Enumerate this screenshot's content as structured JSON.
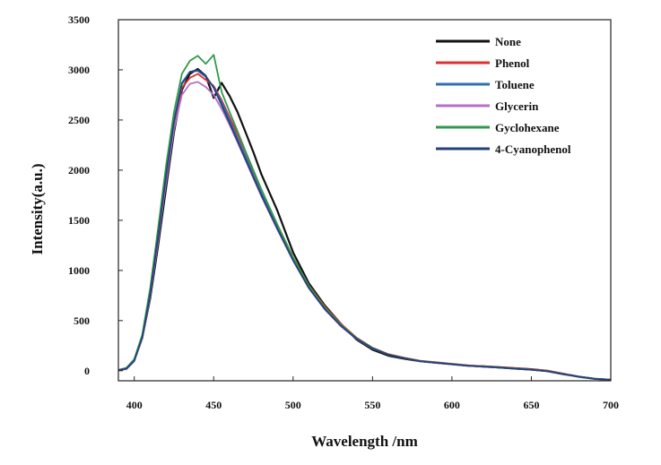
{
  "chart_data": {
    "type": "line",
    "xlabel": "Wavelength /nm",
    "ylabel": "Intensity(a.u.)",
    "xlim": [
      390,
      700
    ],
    "ylim": [
      -100,
      3500
    ],
    "xticks": [
      400,
      450,
      500,
      550,
      600,
      650,
      700
    ],
    "yticks": [
      0,
      500,
      1000,
      1500,
      2000,
      2500,
      3000,
      3500
    ],
    "grid": false,
    "legend_position": "top-right",
    "x": [
      390,
      395,
      400,
      405,
      410,
      415,
      420,
      425,
      430,
      435,
      440,
      445,
      450,
      455,
      460,
      465,
      470,
      475,
      480,
      490,
      500,
      510,
      520,
      530,
      540,
      550,
      560,
      570,
      580,
      590,
      600,
      610,
      620,
      630,
      640,
      650,
      660,
      670,
      680,
      690,
      700
    ],
    "series": [
      {
        "name": "None",
        "color": "#111111",
        "values": [
          5,
          25,
          110,
          330,
          720,
          1250,
          1820,
          2380,
          2800,
          2960,
          3010,
          2940,
          2720,
          2870,
          2740,
          2580,
          2380,
          2180,
          1960,
          1600,
          1180,
          870,
          650,
          470,
          310,
          210,
          150,
          120,
          95,
          80,
          65,
          50,
          45,
          35,
          25,
          15,
          0,
          -30,
          -60,
          -80,
          -90
        ]
      },
      {
        "name": "Phenol",
        "color": "#e03030",
        "values": [
          5,
          20,
          100,
          330,
          760,
          1330,
          1920,
          2460,
          2820,
          2920,
          2960,
          2900,
          2840,
          2700,
          2530,
          2360,
          2180,
          1990,
          1800,
          1460,
          1130,
          850,
          640,
          470,
          330,
          230,
          165,
          130,
          100,
          85,
          70,
          55,
          45,
          35,
          25,
          15,
          0,
          -30,
          -60,
          -80,
          -90
        ]
      },
      {
        "name": "Toluene",
        "color": "#2f6fb0",
        "values": [
          5,
          20,
          105,
          340,
          780,
          1360,
          1960,
          2500,
          2870,
          2980,
          2990,
          2930,
          2830,
          2680,
          2500,
          2320,
          2140,
          1950,
          1770,
          1430,
          1110,
          830,
          620,
          450,
          320,
          225,
          160,
          125,
          95,
          80,
          65,
          50,
          40,
          30,
          20,
          10,
          -5,
          -35,
          -60,
          -80,
          -90
        ]
      },
      {
        "name": "Glycerin",
        "color": "#b470c8",
        "values": [
          5,
          15,
          95,
          320,
          740,
          1300,
          1880,
          2410,
          2750,
          2860,
          2880,
          2830,
          2750,
          2610,
          2450,
          2280,
          2100,
          1920,
          1740,
          1410,
          1100,
          820,
          610,
          445,
          315,
          220,
          160,
          125,
          95,
          80,
          65,
          50,
          40,
          30,
          20,
          10,
          -5,
          -35,
          -60,
          -80,
          -90
        ]
      },
      {
        "name": "Gyclohexane",
        "color": "#2f9a4a",
        "values": [
          5,
          25,
          115,
          360,
          820,
          1420,
          2040,
          2580,
          2960,
          3090,
          3140,
          3060,
          3150,
          2780,
          2580,
          2390,
          2190,
          2000,
          1810,
          1460,
          1130,
          845,
          630,
          460,
          325,
          228,
          162,
          126,
          97,
          82,
          66,
          51,
          41,
          31,
          21,
          11,
          -4,
          -34,
          -60,
          -80,
          -90
        ]
      },
      {
        "name": "4-Cyanophenol",
        "color": "#24427a",
        "values": [
          5,
          20,
          100,
          330,
          760,
          1340,
          1940,
          2480,
          2860,
          2980,
          3000,
          2940,
          2820,
          2650,
          2470,
          2290,
          2110,
          1930,
          1750,
          1420,
          1100,
          825,
          615,
          450,
          318,
          222,
          160,
          125,
          95,
          80,
          65,
          50,
          40,
          30,
          20,
          10,
          -5,
          -35,
          -60,
          -80,
          -90
        ]
      }
    ]
  }
}
